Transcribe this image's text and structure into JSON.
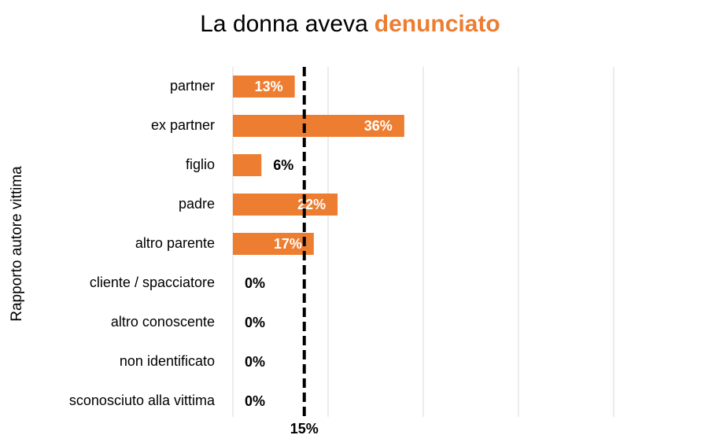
{
  "chart_data": {
    "type": "bar",
    "orientation": "horizontal",
    "title": "La donna aveva",
    "title_highlight": "denunciato",
    "y_label": "Rapporto autore vittima",
    "categories": [
      "partner",
      "ex partner",
      "figlio",
      "padre",
      "altro parente",
      "cliente / spacciatore",
      "altro conoscente",
      "non identificato",
      "sconosciuto alla vittima"
    ],
    "values": [
      13,
      36,
      6,
      22,
      17,
      0,
      0,
      0,
      0
    ],
    "value_labels": [
      "13%",
      "36%",
      "6%",
      "22%",
      "17%",
      "0%",
      "0%",
      "0%",
      "0%"
    ],
    "color": "#ed7d31",
    "xlim": [
      0,
      80
    ],
    "xticks": [
      0,
      20,
      40,
      60,
      80
    ],
    "grid": true,
    "reference_line": {
      "value": 15,
      "label": "15%"
    }
  }
}
